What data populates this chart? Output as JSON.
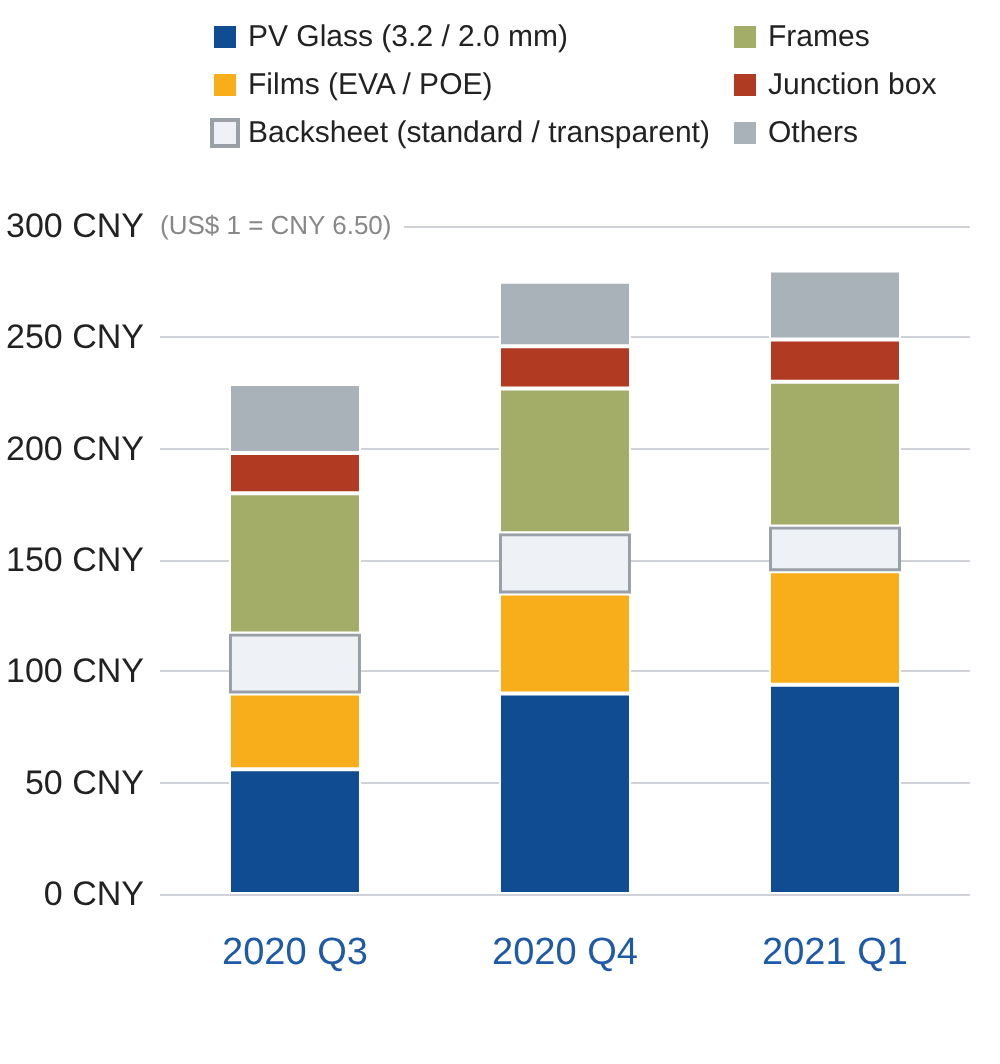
{
  "chart_data": {
    "type": "bar",
    "stacked": true,
    "categories": [
      "2020 Q3",
      "2020 Q4",
      "2021 Q1"
    ],
    "series": [
      {
        "name": "PV Glass (3.2 / 2.0 mm)",
        "color": "#0f4c91",
        "values": [
          56,
          90,
          94
        ]
      },
      {
        "name": "Films (EVA / POE)",
        "color": "#f8ae1a",
        "values": [
          34,
          45,
          51
        ]
      },
      {
        "name": "Backsheet (standard / transparent)",
        "color": "#eef1f5",
        "values": [
          27,
          27,
          20
        ]
      },
      {
        "name": "Frames",
        "color": "#a4ad67",
        "values": [
          63,
          65,
          65
        ]
      },
      {
        "name": "Junction box",
        "color": "#b03a22",
        "values": [
          18,
          19,
          19
        ]
      },
      {
        "name": "Others",
        "color": "#a9b1b9",
        "values": [
          31,
          29,
          31
        ]
      }
    ],
    "ylim": [
      0,
      300
    ],
    "yticks": [
      {
        "value": 0,
        "label": "0 CNY"
      },
      {
        "value": 50,
        "label": "50 CNY"
      },
      {
        "value": 100,
        "label": "100 CNY"
      },
      {
        "value": 150,
        "label": "150 CNY"
      },
      {
        "value": 200,
        "label": "200 CNY"
      },
      {
        "value": 250,
        "label": "250 CNY"
      },
      {
        "value": 300,
        "label": "300 CNY"
      }
    ],
    "grid": "y",
    "legend": "top",
    "annotations": [
      "(US$ 1 = CNY 6.50)"
    ]
  }
}
